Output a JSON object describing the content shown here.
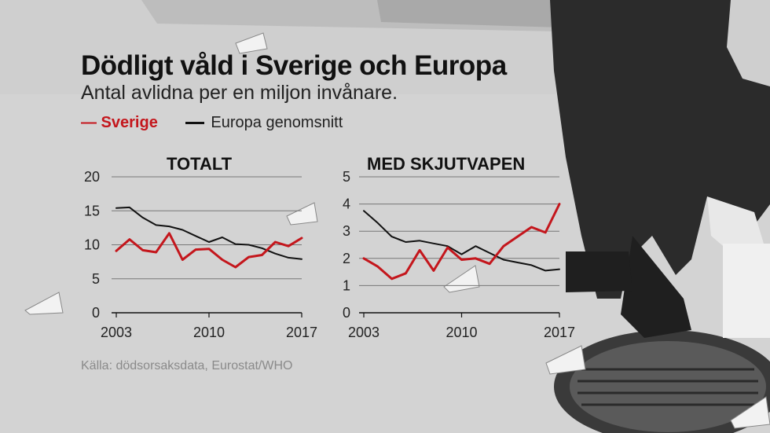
{
  "header": {
    "title": "Dödligt våld i Sverige och Europa",
    "subtitle": "Antal avlidna per en miljon invånare."
  },
  "legend": {
    "sweden": "— Sverige",
    "europe": "Europa genomsnitt"
  },
  "source": "Källa: dödsorsaksdata, Eurostat/WHO",
  "colors": {
    "sweden": "#c4161c",
    "europe": "#111111"
  },
  "chart_data": [
    {
      "type": "line",
      "title": "TOTALT",
      "x": [
        2003,
        2004,
        2005,
        2006,
        2007,
        2008,
        2009,
        2010,
        2011,
        2012,
        2013,
        2014,
        2015,
        2016,
        2017
      ],
      "x_ticks": [
        "2003",
        "2010",
        "2017"
      ],
      "y_ticks": [
        "0",
        "5",
        "10",
        "15",
        "20"
      ],
      "ylim": [
        0,
        20
      ],
      "grid": true,
      "series": [
        {
          "name": "Sverige",
          "values": [
            9.1,
            10.8,
            9.2,
            8.9,
            11.7,
            7.8,
            9.3,
            9.4,
            7.8,
            6.7,
            8.2,
            8.5,
            10.4,
            9.8,
            11.0
          ]
        },
        {
          "name": "Europa genomsnitt",
          "values": [
            15.4,
            15.5,
            14.0,
            12.9,
            12.7,
            12.2,
            11.3,
            10.4,
            11.1,
            10.1,
            10.0,
            9.5,
            8.7,
            8.1,
            7.9
          ]
        }
      ]
    },
    {
      "type": "line",
      "title": "MED SKJUTVAPEN",
      "x": [
        2003,
        2004,
        2005,
        2006,
        2007,
        2008,
        2009,
        2010,
        2011,
        2012,
        2013,
        2014,
        2015,
        2016,
        2017
      ],
      "x_ticks": [
        "2003",
        "2010",
        "2017"
      ],
      "y_ticks": [
        "0",
        "1",
        "2",
        "3",
        "4",
        "5"
      ],
      "ylim": [
        0,
        5
      ],
      "grid": true,
      "series": [
        {
          "name": "Sverige",
          "values": [
            2.0,
            1.7,
            1.25,
            1.45,
            2.3,
            1.55,
            2.4,
            1.95,
            2.0,
            1.8,
            2.45,
            2.8,
            3.15,
            2.95,
            4.0
          ]
        },
        {
          "name": "Europa genomsnitt",
          "values": [
            3.75,
            3.3,
            2.8,
            2.6,
            2.65,
            2.55,
            2.45,
            2.15,
            2.45,
            2.2,
            1.95,
            1.85,
            1.75,
            1.55,
            1.6
          ]
        }
      ]
    }
  ]
}
